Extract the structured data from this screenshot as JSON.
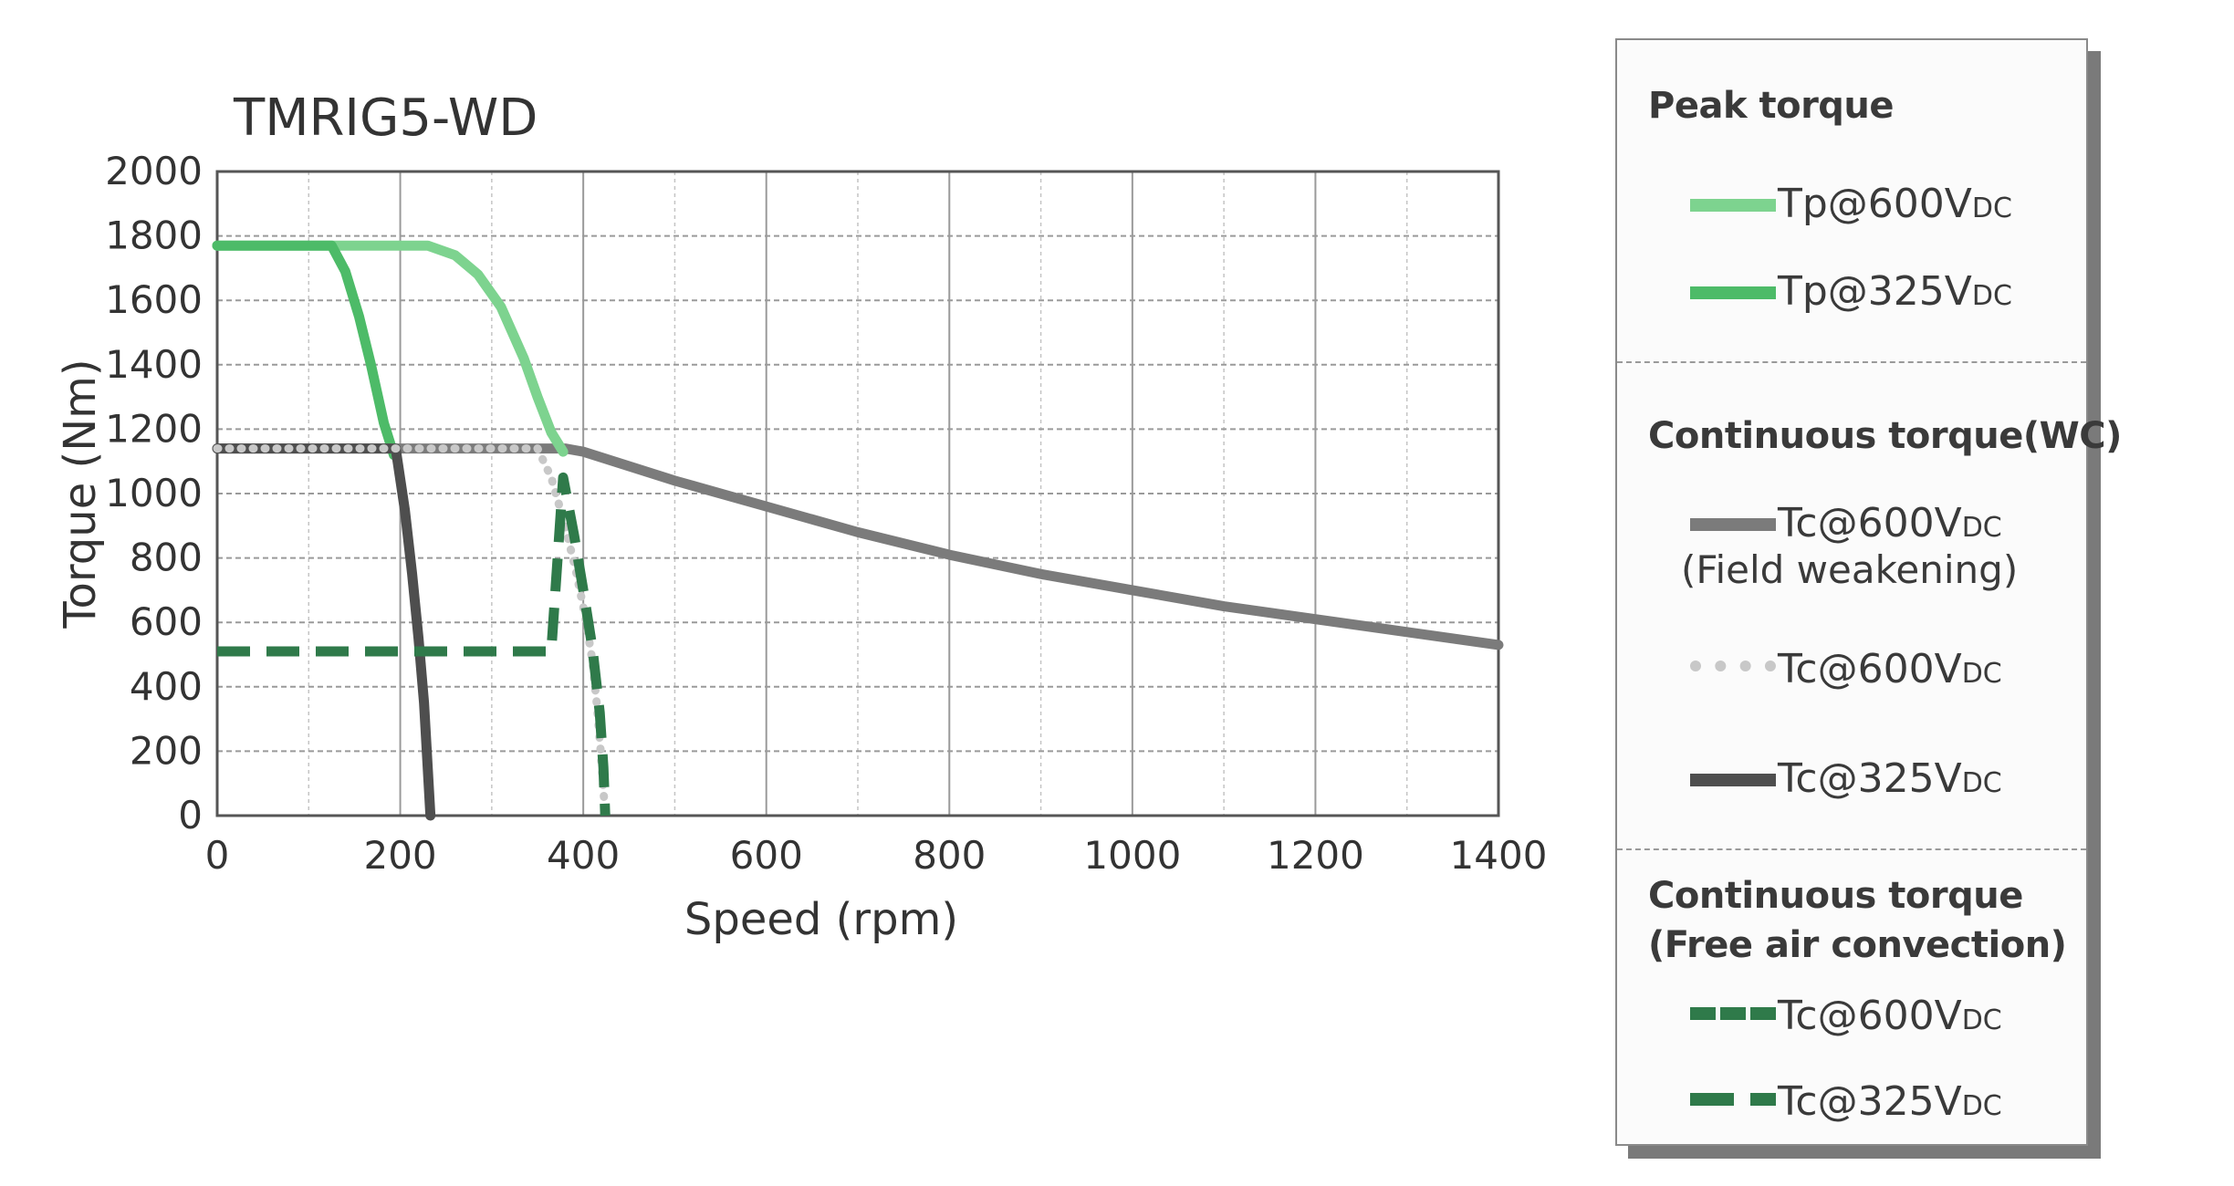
{
  "chart_data": {
    "type": "line",
    "title": "TMRIG5-WD",
    "xlabel": "Speed (rpm)",
    "ylabel": "Torque (Nm)",
    "xlim": [
      0,
      1400
    ],
    "ylim": [
      0,
      2000
    ],
    "xticks": [
      0,
      200,
      400,
      600,
      800,
      1000,
      1200,
      1400
    ],
    "yticks": [
      0,
      200,
      400,
      600,
      800,
      1000,
      1200,
      1400,
      1600,
      1800,
      2000
    ],
    "grid": true,
    "legend_position": "right",
    "series": [
      {
        "name": "Tp@600VDC",
        "group": "Peak torque",
        "color": "#7dd38f",
        "style": "solid",
        "x": [
          0,
          230,
          260,
          285,
          310,
          335,
          350,
          365,
          378
        ],
        "y": [
          1770,
          1770,
          1740,
          1680,
          1580,
          1420,
          1300,
          1190,
          1130
        ]
      },
      {
        "name": "Tp@325VDC",
        "group": "Peak torque",
        "color": "#4dbb68",
        "style": "solid",
        "x": [
          0,
          125,
          140,
          155,
          168,
          182,
          193
        ],
        "y": [
          1770,
          1770,
          1690,
          1550,
          1400,
          1220,
          1120
        ]
      },
      {
        "name": "Tc@600VDC",
        "group": "Continuous torque(WC)",
        "note": "(Field weakening)",
        "color": "#7b7b7b",
        "style": "solid",
        "x": [
          0,
          380,
          400,
          500,
          600,
          700,
          800,
          900,
          1000,
          1100,
          1200,
          1300,
          1400
        ],
        "y": [
          1140,
          1140,
          1130,
          1040,
          960,
          880,
          810,
          750,
          700,
          650,
          610,
          570,
          530
        ]
      },
      {
        "name": "Tc@600VDC",
        "group": "Continuous torque(WC)",
        "color": "#c8c8c8",
        "style": "dotted",
        "x": [
          0,
          350,
          365,
          380,
          392,
          402,
          410,
          415,
          419,
          422,
          424
        ],
        "y": [
          1140,
          1140,
          1050,
          900,
          760,
          620,
          480,
          340,
          200,
          80,
          0
        ]
      },
      {
        "name": "Tc@325VDC",
        "group": "Continuous torque(WC)",
        "color": "#4e4e4e",
        "style": "solid",
        "x": [
          0,
          195,
          205,
          213,
          220,
          226,
          230,
          233
        ],
        "y": [
          1140,
          1140,
          950,
          750,
          550,
          350,
          150,
          0
        ]
      },
      {
        "name": "Tc@600VDC",
        "group": "Continuous torque (Free air convection)",
        "color": "#2f7a4a",
        "style": "dashed",
        "x": [
          0,
          365,
          378,
          390,
          400,
          410,
          418,
          422,
          424
        ],
        "y": [
          510,
          510,
          1050,
          870,
          700,
          520,
          320,
          150,
          0
        ]
      },
      {
        "name": "Tc@325VDC",
        "group": "Continuous torque (Free air convection)",
        "color": "#2f7a4a",
        "style": "dashed",
        "x": [
          0,
          375
        ],
        "y": [
          510,
          510
        ]
      }
    ]
  },
  "legend": {
    "peak_heading": "Peak torque",
    "peak_items": [
      {
        "label": "Tp@600V",
        "sub": "DC",
        "color": "#7dd38f",
        "style": "solid"
      },
      {
        "label": "Tp@325V",
        "sub": "DC",
        "color": "#4dbb68",
        "style": "solid"
      }
    ],
    "wc_heading": "Continuous torque(WC)",
    "wc_items": [
      {
        "label": "Tc@600V",
        "sub": "DC",
        "note": "(Field weakening)",
        "color": "#7b7b7b",
        "style": "solid"
      },
      {
        "label": "Tc@600V",
        "sub": "DC",
        "color": "#c8c8c8",
        "style": "dotted"
      },
      {
        "label": "Tc@325V",
        "sub": "DC",
        "color": "#4e4e4e",
        "style": "solid"
      }
    ],
    "fac_heading_line1": "Continuous torque",
    "fac_heading_line2": "(Free air convection)",
    "fac_items": [
      {
        "label": "Tc@600V",
        "sub": "DC",
        "color": "#2f7a4a",
        "style": "dashed"
      },
      {
        "label": "Tc@325V",
        "sub": "DC",
        "color": "#2f7a4a",
        "style": "dashed-gap"
      }
    ]
  }
}
